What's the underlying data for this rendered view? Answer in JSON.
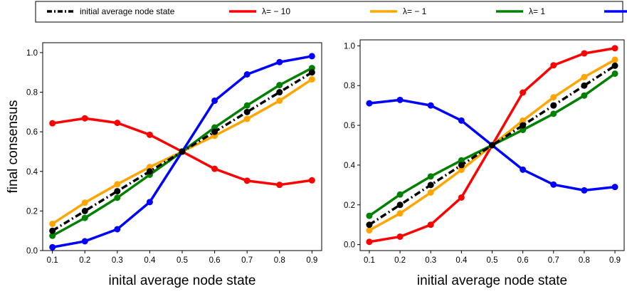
{
  "legend": {
    "entries": [
      {
        "label": "initial average node state",
        "color": "#000000",
        "style": "dashdot"
      },
      {
        "label": "λ= − 10",
        "color": "#ff0000",
        "style": "solid"
      },
      {
        "label": "λ= − 1",
        "color": "#ffa500",
        "style": "solid"
      },
      {
        "label": "λ= 1",
        "color": "#008000",
        "style": "solid"
      },
      {
        "label": "λ= 10",
        "color": "#0000ff",
        "style": "solid"
      }
    ]
  },
  "chart_data": [
    {
      "type": "line",
      "title": "",
      "xlabel": "inital average node state",
      "ylabel": "final consensus",
      "xlim": [
        0.07,
        0.93
      ],
      "ylim": [
        0.0,
        1.05
      ],
      "x": [
        0.1,
        0.2,
        0.3,
        0.4,
        0.5,
        0.6,
        0.7,
        0.8,
        0.9
      ],
      "xticks": [
        "0.1",
        "0.2",
        "0.3",
        "0.4",
        "0.5",
        "0.6",
        "0.7",
        "0.8",
        "0.9"
      ],
      "yticks": [
        "0.0",
        "0.2",
        "0.4",
        "0.6",
        "0.8",
        "1.0"
      ],
      "grid": false,
      "series": [
        {
          "name": "λ= − 10",
          "color": "#ff0000",
          "values": [
            0.643,
            0.668,
            0.645,
            0.585,
            0.5,
            0.413,
            0.353,
            0.332,
            0.355
          ]
        },
        {
          "name": "λ= − 1",
          "color": "#ffa500",
          "values": [
            0.135,
            0.242,
            0.335,
            0.422,
            0.5,
            0.58,
            0.665,
            0.757,
            0.865
          ]
        },
        {
          "name": "λ= 1",
          "color": "#008000",
          "values": [
            0.075,
            0.165,
            0.267,
            0.383,
            0.5,
            0.622,
            0.733,
            0.836,
            0.922
          ]
        },
        {
          "name": "λ= 10",
          "color": "#0000ff",
          "values": [
            0.017,
            0.047,
            0.108,
            0.245,
            0.5,
            0.757,
            0.89,
            0.952,
            0.982
          ]
        },
        {
          "name": "initial average node state",
          "color": "#000000",
          "dash": true,
          "values": [
            0.1,
            0.2,
            0.3,
            0.4,
            0.5,
            0.6,
            0.7,
            0.8,
            0.9
          ]
        }
      ]
    },
    {
      "type": "line",
      "title": "",
      "xlabel": "initial average node state",
      "ylabel": "",
      "xlim": [
        0.07,
        0.93
      ],
      "ylim": [
        -0.03,
        1.03
      ],
      "x": [
        0.1,
        0.2,
        0.3,
        0.4,
        0.5,
        0.6,
        0.7,
        0.8,
        0.9
      ],
      "xticks": [
        "0.1",
        "0.2",
        "0.3",
        "0.4",
        "0.5",
        "0.6",
        "0.7",
        "0.8",
        "0.9"
      ],
      "yticks": [
        "0.0",
        "0.2",
        "0.4",
        "0.6",
        "0.8",
        "1.0"
      ],
      "grid": false,
      "series": [
        {
          "name": "λ= − 10",
          "color": "#ff0000",
          "values": [
            0.014,
            0.04,
            0.1,
            0.237,
            0.5,
            0.765,
            0.902,
            0.962,
            0.988
          ]
        },
        {
          "name": "λ= − 1",
          "color": "#ffa500",
          "values": [
            0.072,
            0.157,
            0.262,
            0.376,
            0.5,
            0.624,
            0.741,
            0.843,
            0.93
          ]
        },
        {
          "name": "λ= 1",
          "color": "#008000",
          "values": [
            0.145,
            0.252,
            0.343,
            0.424,
            0.5,
            0.577,
            0.658,
            0.75,
            0.86
          ]
        },
        {
          "name": "λ= 10",
          "color": "#0000ff",
          "values": [
            0.711,
            0.728,
            0.7,
            0.624,
            0.5,
            0.377,
            0.302,
            0.273,
            0.29
          ]
        },
        {
          "name": "initial average node state",
          "color": "#000000",
          "dash": true,
          "values": [
            0.1,
            0.2,
            0.3,
            0.4,
            0.5,
            0.6,
            0.7,
            0.8,
            0.9
          ]
        }
      ]
    }
  ]
}
